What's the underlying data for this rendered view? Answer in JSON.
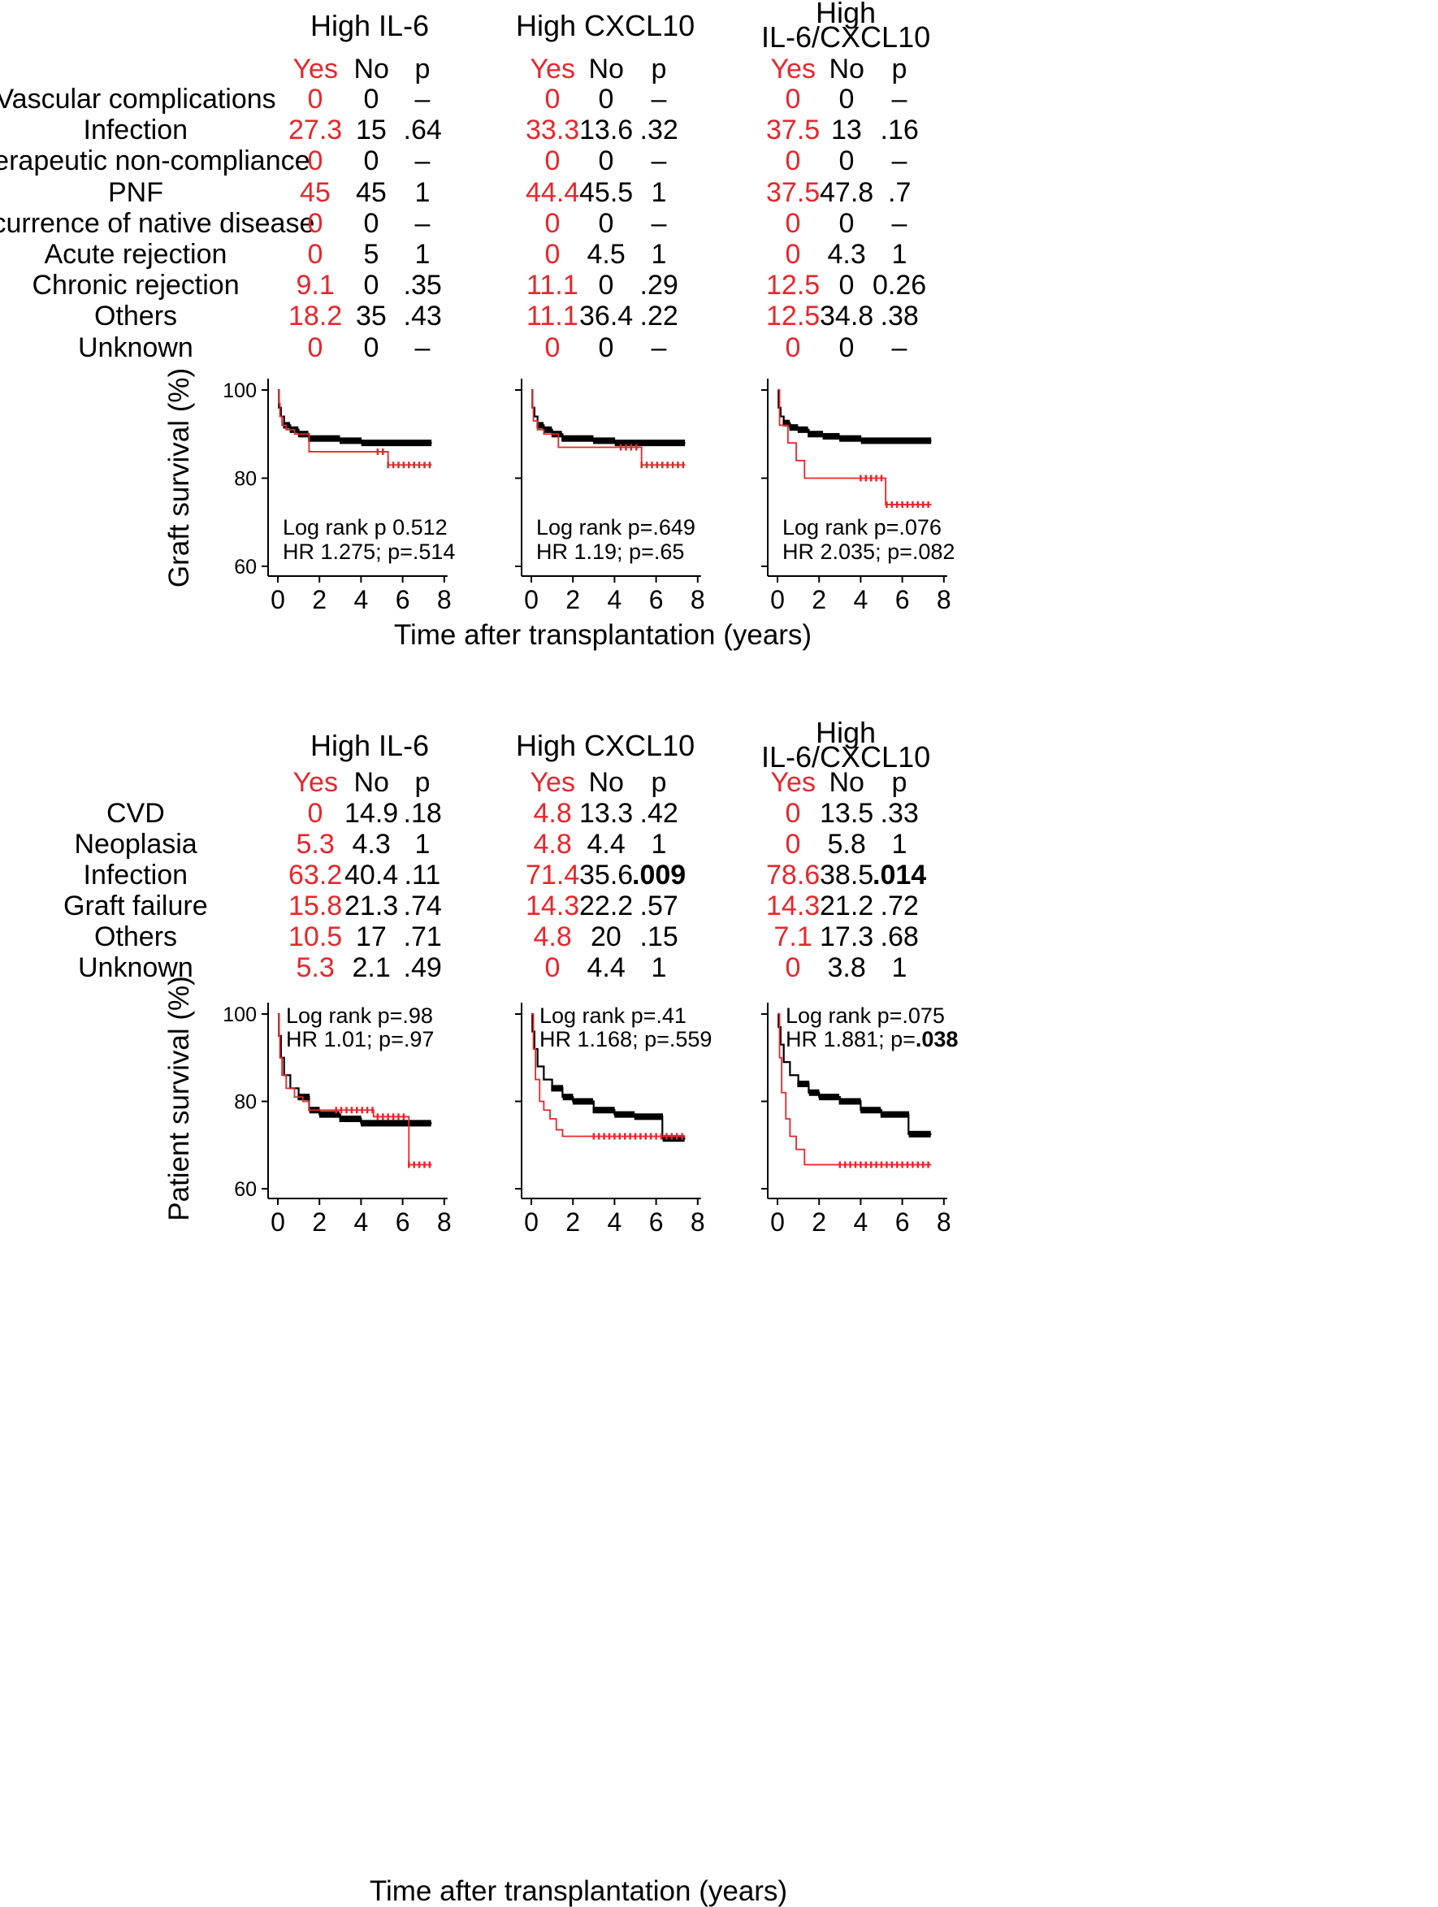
{
  "colors": {
    "yes": "#e8262b",
    "no": "#000000"
  },
  "graft_section": {
    "columns": [
      {
        "title_lines": [
          "High IL-6"
        ]
      },
      {
        "title_lines": [
          "High CXCL10"
        ]
      },
      {
        "title_lines": [
          "High",
          "IL-6/CXCL10"
        ]
      }
    ],
    "subheaders": [
      "Yes",
      "No",
      "p"
    ],
    "rows": [
      {
        "label": "Vascular complications",
        "values": [
          [
            "0",
            "0",
            "–"
          ],
          [
            "0",
            "0",
            "–"
          ],
          [
            "0",
            "0",
            "–"
          ]
        ]
      },
      {
        "label": "Infection",
        "values": [
          [
            "27.3",
            "15",
            ".64"
          ],
          [
            "33.3",
            "13.6",
            ".32"
          ],
          [
            "37.5",
            "13",
            ".16"
          ]
        ]
      },
      {
        "label": "Therapeutic non-compliance",
        "values": [
          [
            "0",
            "0",
            "–"
          ],
          [
            "0",
            "0",
            "–"
          ],
          [
            "0",
            "0",
            "–"
          ]
        ]
      },
      {
        "label": "PNF",
        "values": [
          [
            "45",
            "45",
            "1"
          ],
          [
            "44.4",
            "45.5",
            "1"
          ],
          [
            "37.5",
            "47.8",
            ".7"
          ]
        ]
      },
      {
        "label": "Recurrence of native disease",
        "values": [
          [
            "0",
            "0",
            "–"
          ],
          [
            "0",
            "0",
            "–"
          ],
          [
            "0",
            "0",
            "–"
          ]
        ]
      },
      {
        "label": "Acute rejection",
        "values": [
          [
            "0",
            "5",
            "1"
          ],
          [
            "0",
            "4.5",
            "1"
          ],
          [
            "0",
            "4.3",
            "1"
          ]
        ]
      },
      {
        "label": "Chronic rejection",
        "values": [
          [
            "9.1",
            "0",
            ".35"
          ],
          [
            "11.1",
            "0",
            ".29"
          ],
          [
            "12.5",
            "0",
            "0.26"
          ]
        ]
      },
      {
        "label": "Others",
        "values": [
          [
            "18.2",
            "35",
            ".43"
          ],
          [
            "11.1",
            "36.4",
            ".22"
          ],
          [
            "12.5",
            "34.8",
            ".38"
          ]
        ]
      },
      {
        "label": "Unknown",
        "values": [
          [
            "0",
            "0",
            "–"
          ],
          [
            "0",
            "0",
            "–"
          ],
          [
            "0",
            "0",
            "–"
          ]
        ]
      }
    ],
    "bold_p": []
  },
  "patient_section": {
    "columns": [
      {
        "title_lines": [
          "High IL-6"
        ]
      },
      {
        "title_lines": [
          "High CXCL10"
        ]
      },
      {
        "title_lines": [
          "High",
          "IL-6/CXCL10"
        ]
      }
    ],
    "subheaders": [
      "Yes",
      "No",
      "p"
    ],
    "rows": [
      {
        "label": "CVD",
        "values": [
          [
            "0",
            "14.9",
            ".18"
          ],
          [
            "4.8",
            "13.3",
            ".42"
          ],
          [
            "0",
            "13.5",
            ".33"
          ]
        ]
      },
      {
        "label": "Neoplasia",
        "values": [
          [
            "5.3",
            "4.3",
            "1"
          ],
          [
            "4.8",
            "4.4",
            "1"
          ],
          [
            "0",
            "5.8",
            "1"
          ]
        ]
      },
      {
        "label": "Infection",
        "values": [
          [
            "63.2",
            "40.4",
            ".11"
          ],
          [
            "71.4",
            "35.6",
            ".009"
          ],
          [
            "78.6",
            "38.5",
            ".014"
          ]
        ]
      },
      {
        "label": "Graft failure",
        "values": [
          [
            "15.8",
            "21.3",
            ".74"
          ],
          [
            "14.3",
            "22.2",
            ".57"
          ],
          [
            "14.3",
            "21.2",
            ".72"
          ]
        ]
      },
      {
        "label": "Others",
        "values": [
          [
            "10.5",
            "17",
            ".71"
          ],
          [
            "4.8",
            "20",
            ".15"
          ],
          [
            "7.1",
            "17.3",
            ".68"
          ]
        ]
      },
      {
        "label": "Unknown",
        "values": [
          [
            "5.3",
            "2.1",
            ".49"
          ],
          [
            "0",
            "4.4",
            "1"
          ],
          [
            "0",
            "3.8",
            "1"
          ]
        ]
      }
    ],
    "bold_p": [
      [
        2,
        1
      ],
      [
        2,
        2
      ]
    ]
  },
  "chart_data": [
    {
      "type": "line",
      "title": "Graft survival — High IL-6",
      "ylabel": "Graft survival  (%)",
      "xlabel": "Time after transplantation (years)",
      "xlim": [
        0,
        8
      ],
      "ylim": [
        60,
        100
      ],
      "xticks": [
        0,
        2,
        4,
        6,
        8
      ],
      "yticks": [
        60,
        80,
        100
      ],
      "series": [
        {
          "name": "Yes",
          "color": "#e8262b",
          "censor_from": 4.8,
          "points": [
            [
              0,
              100
            ],
            [
              0.05,
              97
            ],
            [
              0.1,
              94
            ],
            [
              0.2,
              92
            ],
            [
              0.4,
              91
            ],
            [
              0.8,
              90
            ],
            [
              1.5,
              86
            ],
            [
              5.2,
              86
            ],
            [
              5.3,
              83
            ],
            [
              7.4,
              83
            ]
          ]
        },
        {
          "name": "No",
          "color": "#000000",
          "censor_from": 0.3,
          "points": [
            [
              0,
              100
            ],
            [
              0.05,
              96
            ],
            [
              0.15,
              94
            ],
            [
              0.3,
              92
            ],
            [
              0.6,
              91
            ],
            [
              1,
              90
            ],
            [
              1.5,
              89
            ],
            [
              2.2,
              89
            ],
            [
              3,
              88.5
            ],
            [
              4,
              88
            ],
            [
              5,
              88
            ],
            [
              7.4,
              88
            ]
          ]
        }
      ],
      "annotations": [
        "Log rank p 0.512",
        "HR 1.275; p=.514"
      ]
    },
    {
      "type": "line",
      "title": "Graft survival — High CXCL10",
      "ylabel": "Graft survival  (%)",
      "xlabel": "Time after transplantation (years)",
      "xlim": [
        0,
        8
      ],
      "ylim": [
        60,
        100
      ],
      "xticks": [
        0,
        2,
        4,
        6,
        8
      ],
      "yticks": [
        60,
        80,
        100
      ],
      "series": [
        {
          "name": "Yes",
          "color": "#e8262b",
          "censor_from": 4.3,
          "points": [
            [
              0,
              100
            ],
            [
              0.05,
              96
            ],
            [
              0.1,
              93
            ],
            [
              0.3,
              91
            ],
            [
              0.6,
              90
            ],
            [
              1.3,
              87
            ],
            [
              5.2,
              87
            ],
            [
              5.3,
              83
            ],
            [
              7.4,
              83
            ]
          ]
        },
        {
          "name": "No",
          "color": "#000000",
          "censor_from": 0.3,
          "points": [
            [
              0,
              100
            ],
            [
              0.05,
              96
            ],
            [
              0.15,
              94
            ],
            [
              0.3,
              92
            ],
            [
              0.6,
              91
            ],
            [
              1,
              90
            ],
            [
              1.5,
              89
            ],
            [
              2.2,
              89
            ],
            [
              3,
              88.5
            ],
            [
              4,
              88
            ],
            [
              5,
              88
            ],
            [
              7.4,
              88
            ]
          ]
        }
      ],
      "annotations": [
        "Log rank p=.649",
        "HR 1.19; p=.65"
      ]
    },
    {
      "type": "line",
      "title": "Graft survival — High IL-6/CXCL10",
      "ylabel": "Graft survival  (%)",
      "xlabel": "Time after transplantation (years)",
      "xlim": [
        0,
        8
      ],
      "ylim": [
        60,
        100
      ],
      "xticks": [
        0,
        2,
        4,
        6,
        8
      ],
      "yticks": [
        60,
        80,
        100
      ],
      "series": [
        {
          "name": "Yes",
          "color": "#e8262b",
          "censor_from": 4.0,
          "points": [
            [
              0,
              100
            ],
            [
              0.1,
              92
            ],
            [
              0.4,
              92
            ],
            [
              0.5,
              88
            ],
            [
              0.9,
              84
            ],
            [
              1.3,
              80
            ],
            [
              5.1,
              80
            ],
            [
              5.2,
              74
            ],
            [
              7.4,
              74
            ]
          ]
        },
        {
          "name": "No",
          "color": "#000000",
          "censor_from": 0.3,
          "points": [
            [
              0,
              100
            ],
            [
              0.05,
              96
            ],
            [
              0.15,
              94
            ],
            [
              0.3,
              92.5
            ],
            [
              0.6,
              91.5
            ],
            [
              1,
              91
            ],
            [
              1.5,
              90
            ],
            [
              2.2,
              89.5
            ],
            [
              3,
              89
            ],
            [
              4,
              88.5
            ],
            [
              5,
              88.5
            ],
            [
              7.4,
              88.5
            ]
          ]
        }
      ],
      "annotations": [
        "Log rank p=.076",
        "HR 2.035; p=.082"
      ]
    },
    {
      "type": "line",
      "title": "Patient survival — High IL-6",
      "ylabel": "Patient survival  (%)",
      "xlabel": "Time after transplantation (years)",
      "xlim": [
        0,
        8
      ],
      "ylim": [
        60,
        100
      ],
      "xticks": [
        0,
        2,
        4,
        6,
        8
      ],
      "yticks": [
        60,
        80,
        100
      ],
      "series": [
        {
          "name": "Yes",
          "color": "#e8262b",
          "censor_from": 2.8,
          "points": [
            [
              0,
              100
            ],
            [
              0.05,
              95
            ],
            [
              0.1,
              90
            ],
            [
              0.2,
              86
            ],
            [
              0.4,
              83
            ],
            [
              0.8,
              81
            ],
            [
              1.2,
              80
            ],
            [
              1.5,
              78
            ],
            [
              4.5,
              78
            ],
            [
              4.6,
              76.5
            ],
            [
              6.2,
              76.5
            ],
            [
              6.3,
              65.5
            ],
            [
              7.4,
              65.5
            ]
          ]
        },
        {
          "name": "No",
          "color": "#000000",
          "censor_from": 1.0,
          "points": [
            [
              0,
              100
            ],
            [
              0.05,
              95
            ],
            [
              0.15,
              90
            ],
            [
              0.3,
              86
            ],
            [
              0.6,
              83
            ],
            [
              1,
              81
            ],
            [
              1.5,
              78
            ],
            [
              2,
              77
            ],
            [
              3,
              76
            ],
            [
              4,
              75
            ],
            [
              5,
              75
            ],
            [
              7.4,
              75
            ]
          ]
        }
      ],
      "annotations": [
        "Log rank p=.98",
        "HR 1.01; p=.97"
      ]
    },
    {
      "type": "line",
      "title": "Patient survival — High CXCL10",
      "ylabel": "Patient survival  (%)",
      "xlabel": "Time after transplantation (years)",
      "xlim": [
        0,
        8
      ],
      "ylim": [
        60,
        100
      ],
      "xticks": [
        0,
        2,
        4,
        6,
        8
      ],
      "yticks": [
        60,
        80,
        100
      ],
      "series": [
        {
          "name": "Yes",
          "color": "#e8262b",
          "censor_from": 3.0,
          "points": [
            [
              0,
              100
            ],
            [
              0.1,
              92
            ],
            [
              0.2,
              85
            ],
            [
              0.4,
              80
            ],
            [
              0.6,
              78
            ],
            [
              0.9,
              76
            ],
            [
              1.2,
              73.5
            ],
            [
              1.5,
              72
            ],
            [
              7.4,
              72
            ]
          ]
        },
        {
          "name": "No",
          "color": "#000000",
          "censor_from": 1.0,
          "points": [
            [
              0,
              100
            ],
            [
              0.05,
              96
            ],
            [
              0.15,
              92
            ],
            [
              0.3,
              88
            ],
            [
              0.6,
              85
            ],
            [
              1,
              83
            ],
            [
              1.5,
              81
            ],
            [
              2,
              80
            ],
            [
              3,
              78
            ],
            [
              4,
              77
            ],
            [
              5,
              76.5
            ],
            [
              6.2,
              76.5
            ],
            [
              6.3,
              71.5
            ],
            [
              7.4,
              71.5
            ]
          ]
        }
      ],
      "annotations": [
        "Log rank p=.41",
        "HR 1.168; p=.559"
      ]
    },
    {
      "type": "line",
      "title": "Patient survival — High IL-6/CXCL10",
      "ylabel": "Patient survival  (%)",
      "xlabel": "Time after transplantation (years)",
      "xlim": [
        0,
        8
      ],
      "ylim": [
        60,
        100
      ],
      "xticks": [
        0,
        2,
        4,
        6,
        8
      ],
      "yticks": [
        60,
        80,
        100
      ],
      "series": [
        {
          "name": "Yes",
          "color": "#e8262b",
          "censor_from": 3.0,
          "points": [
            [
              0,
              100
            ],
            [
              0.1,
              90
            ],
            [
              0.2,
              82
            ],
            [
              0.4,
              76
            ],
            [
              0.6,
              72
            ],
            [
              0.9,
              69
            ],
            [
              1.3,
              65.5
            ],
            [
              7.4,
              65.5
            ]
          ]
        },
        {
          "name": "No",
          "color": "#000000",
          "censor_from": 1.0,
          "points": [
            [
              0,
              100
            ],
            [
              0.05,
              97
            ],
            [
              0.15,
              93
            ],
            [
              0.3,
              89
            ],
            [
              0.6,
              86
            ],
            [
              1,
              84
            ],
            [
              1.5,
              82
            ],
            [
              2,
              81
            ],
            [
              3,
              80
            ],
            [
              4,
              78
            ],
            [
              5,
              77
            ],
            [
              6.2,
              77
            ],
            [
              6.3,
              72.5
            ],
            [
              7.4,
              72.5
            ]
          ]
        }
      ],
      "annotations": [
        "Log rank p=.075",
        "HR 1.881; p=.038"
      ]
    }
  ],
  "footer": {
    "xaxis_title_top": "Time after transplantation (years)",
    "xaxis_title_bottom": "Time after transplantation (years)",
    "ylabel_top": "Graft survival  (%)",
    "ylabel_bottom": "Patient survival  (%)"
  }
}
